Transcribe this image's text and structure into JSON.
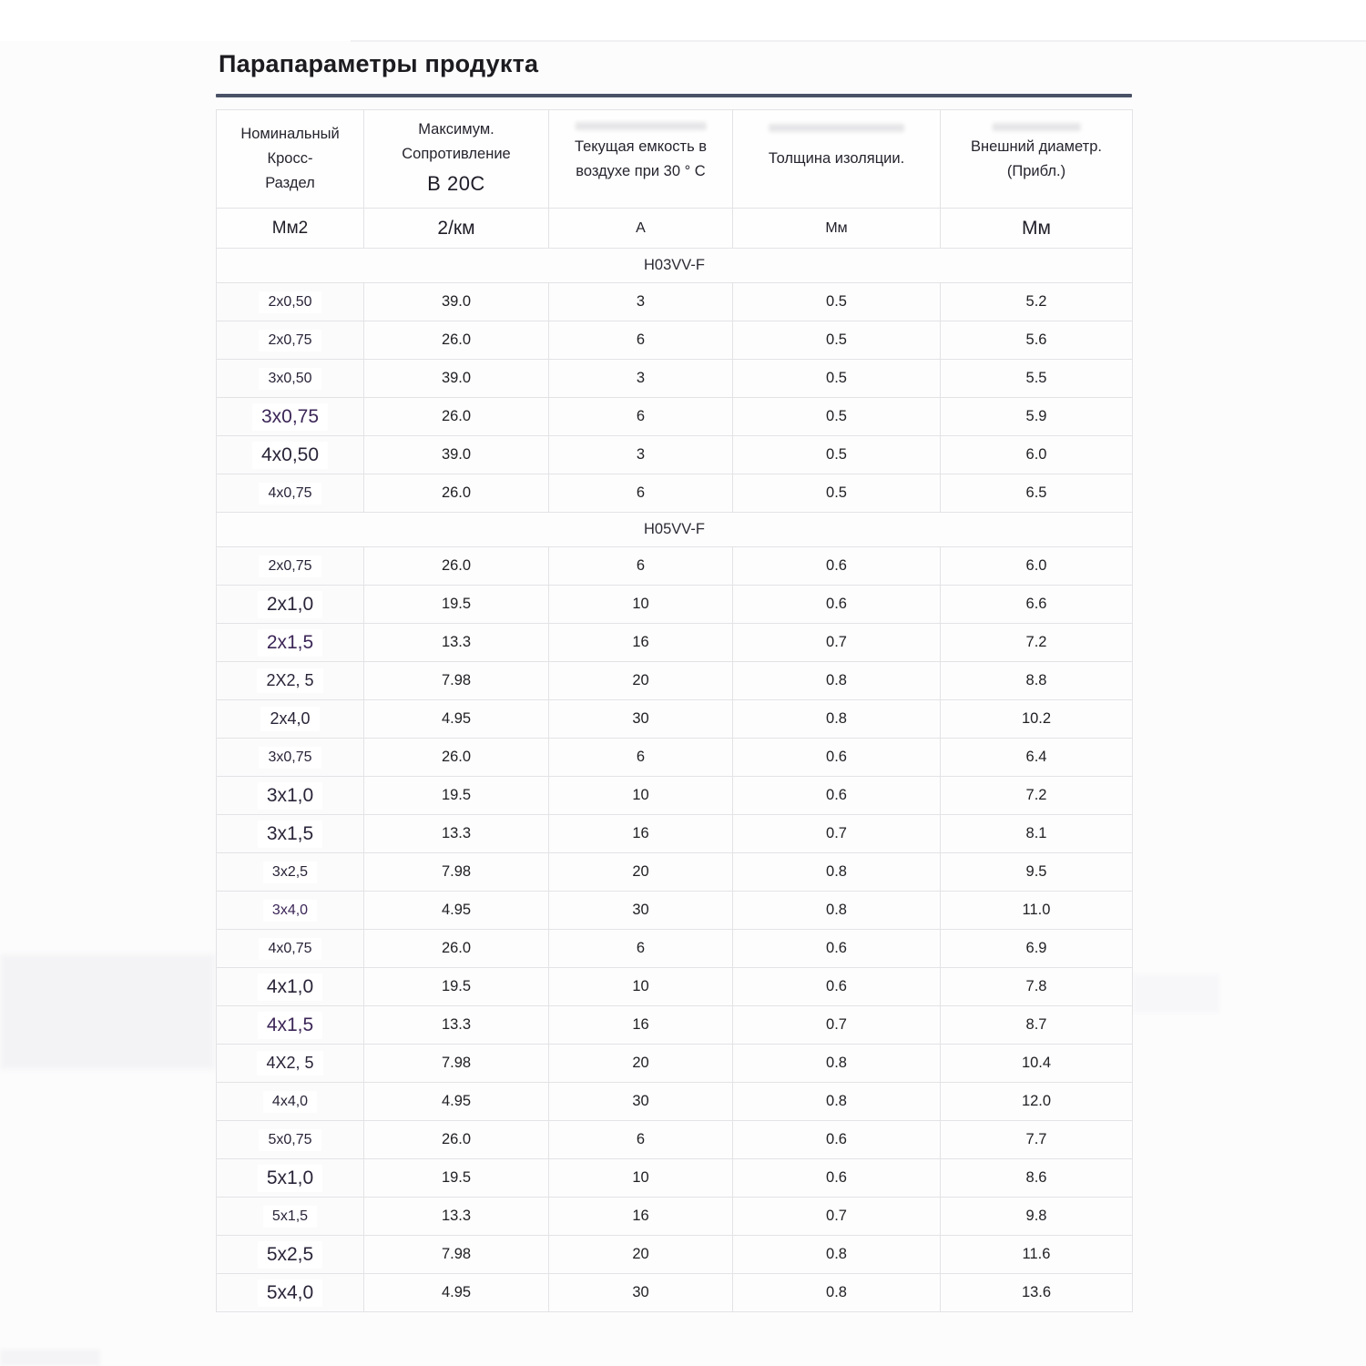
{
  "page": {
    "title": "Парапараметры продукта"
  },
  "colors": {
    "divider": "#4a5266",
    "table_border": "#e3e3e6",
    "label_dark": "#2a2438",
    "label_purple": "#3b2557",
    "text": "#212125"
  },
  "table": {
    "headers": [
      {
        "lines": [
          "Номинальный",
          "Кросс-",
          "Раздел"
        ]
      },
      {
        "lines": [
          "Максимум.",
          "Сопротивление",
          "В 20С"
        ]
      },
      {
        "lines": [
          "Текущая емкость в",
          "воздухе при 30 ° С"
        ]
      },
      {
        "lines": [
          "Толщина изоляции."
        ]
      },
      {
        "lines": [
          "Внешний диаметр.",
          "(Прибл.)"
        ]
      }
    ],
    "units": [
      "Мм2",
      "2/км",
      "А",
      "Мм",
      "Мм"
    ],
    "sections": [
      {
        "name": "H03VV-F",
        "rows": [
          {
            "label": "2x0,50",
            "size": "sm",
            "tint": "dark",
            "values": [
              "39.0",
              "3",
              "0.5",
              "5.2"
            ]
          },
          {
            "label": "2x0,75",
            "size": "sm",
            "tint": "dark",
            "values": [
              "26.0",
              "6",
              "0.5",
              "5.6"
            ]
          },
          {
            "label": "3x0,50",
            "size": "sm",
            "tint": "dark",
            "values": [
              "39.0",
              "3",
              "0.5",
              "5.5"
            ]
          },
          {
            "label": "3x0,75",
            "size": "lg",
            "tint": "purple",
            "values": [
              "26.0",
              "6",
              "0.5",
              "5.9"
            ]
          },
          {
            "label": "4x0,50",
            "size": "lg",
            "tint": "dark",
            "values": [
              "39.0",
              "3",
              "0.5",
              "6.0"
            ]
          },
          {
            "label": "4x0,75",
            "size": "sm",
            "tint": "dark",
            "values": [
              "26.0",
              "6",
              "0.5",
              "6.5"
            ]
          }
        ]
      },
      {
        "name": "H05VV-F",
        "rows": [
          {
            "label": "2x0,75",
            "size": "sm",
            "tint": "dark",
            "values": [
              "26.0",
              "6",
              "0.6",
              "6.0"
            ]
          },
          {
            "label": "2x1,0",
            "size": "lg",
            "tint": "dark",
            "values": [
              "19.5",
              "10",
              "0.6",
              "6.6"
            ]
          },
          {
            "label": "2x1,5",
            "size": "lg",
            "tint": "purple",
            "values": [
              "13.3",
              "16",
              "0.7",
              "7.2"
            ]
          },
          {
            "label": "2X2, 5",
            "size": "md",
            "tint": "dark",
            "values": [
              "7.98",
              "20",
              "0.8",
              "8.8"
            ]
          },
          {
            "label": "2x4,0",
            "size": "md",
            "tint": "dark",
            "values": [
              "4.95",
              "30",
              "0.8",
              "10.2"
            ]
          },
          {
            "label": "3x0,75",
            "size": "sm",
            "tint": "dark",
            "values": [
              "26.0",
              "6",
              "0.6",
              "6.4"
            ]
          },
          {
            "label": "3x1,0",
            "size": "lg",
            "tint": "dark",
            "values": [
              "19.5",
              "10",
              "0.6",
              "7.2"
            ]
          },
          {
            "label": "3x1,5",
            "size": "lg",
            "tint": "dark",
            "values": [
              "13.3",
              "16",
              "0.7",
              "8.1"
            ]
          },
          {
            "label": "3x2,5",
            "size": "sm",
            "tint": "dark",
            "values": [
              "7.98",
              "20",
              "0.8",
              "9.5"
            ]
          },
          {
            "label": "3x4,0",
            "size": "sm",
            "tint": "purple",
            "values": [
              "4.95",
              "30",
              "0.8",
              "11.0"
            ]
          },
          {
            "label": "4x0,75",
            "size": "sm",
            "tint": "dark",
            "values": [
              "26.0",
              "6",
              "0.6",
              "6.9"
            ]
          },
          {
            "label": "4x1,0",
            "size": "lg",
            "tint": "dark",
            "values": [
              "19.5",
              "10",
              "0.6",
              "7.8"
            ]
          },
          {
            "label": "4x1,5",
            "size": "lg",
            "tint": "purple",
            "values": [
              "13.3",
              "16",
              "0.7",
              "8.7"
            ]
          },
          {
            "label": "4X2, 5",
            "size": "md",
            "tint": "dark",
            "values": [
              "7.98",
              "20",
              "0.8",
              "10.4"
            ]
          },
          {
            "label": "4x4,0",
            "size": "sm",
            "tint": "dark",
            "values": [
              "4.95",
              "30",
              "0.8",
              "12.0"
            ]
          },
          {
            "label": "5x0,75",
            "size": "sm",
            "tint": "dark",
            "values": [
              "26.0",
              "6",
              "0.6",
              "7.7"
            ]
          },
          {
            "label": "5x1,0",
            "size": "lg",
            "tint": "dark",
            "values": [
              "19.5",
              "10",
              "0.6",
              "8.6"
            ]
          },
          {
            "label": "5x1,5",
            "size": "sm",
            "tint": "dark",
            "values": [
              "13.3",
              "16",
              "0.7",
              "9.8"
            ]
          },
          {
            "label": "5x2,5",
            "size": "lg",
            "tint": "dark",
            "values": [
              "7.98",
              "20",
              "0.8",
              "11.6"
            ]
          },
          {
            "label": "5x4,0",
            "size": "lg",
            "tint": "dark",
            "values": [
              "4.95",
              "30",
              "0.8",
              "13.6"
            ]
          }
        ]
      }
    ]
  }
}
